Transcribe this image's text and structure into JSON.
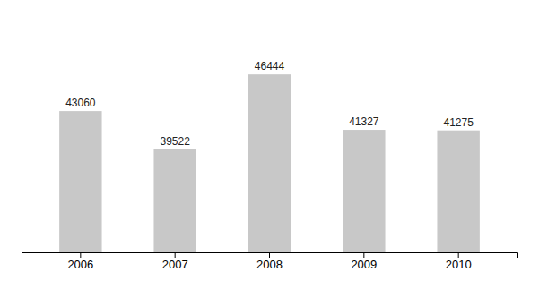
{
  "chart_data": {
    "type": "bar",
    "categories": [
      "2006",
      "2007",
      "2008",
      "2009",
      "2010"
    ],
    "values": [
      43060,
      39522,
      46444,
      41327,
      41275
    ],
    "color": "#c8c8c8",
    "ylim": [
      30000,
      52000
    ],
    "data_labels": true,
    "tick_labels": "x"
  }
}
